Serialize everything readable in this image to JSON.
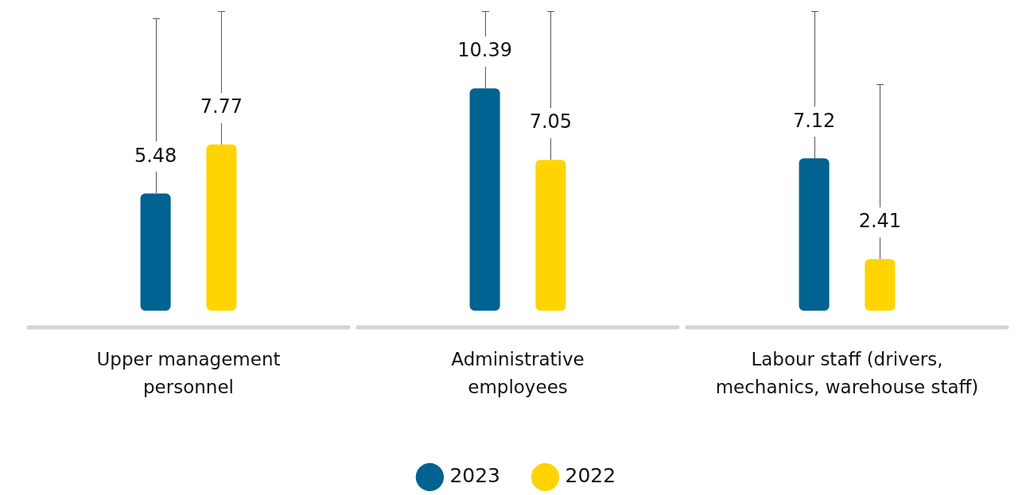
{
  "chart_data": {
    "type": "bar",
    "categories": [
      "Upper management personnel",
      "Administrative employees",
      "Labour staff (drivers, mechanics, warehouse staff)"
    ],
    "series": [
      {
        "name": "2023",
        "color": "#006290",
        "values": [
          5.48,
          10.39,
          7.12
        ]
      },
      {
        "name": "2022",
        "color": "#ffd400",
        "values": [
          7.77,
          7.05,
          2.41
        ]
      }
    ],
    "data_labels": true,
    "legend": "bottom"
  }
}
